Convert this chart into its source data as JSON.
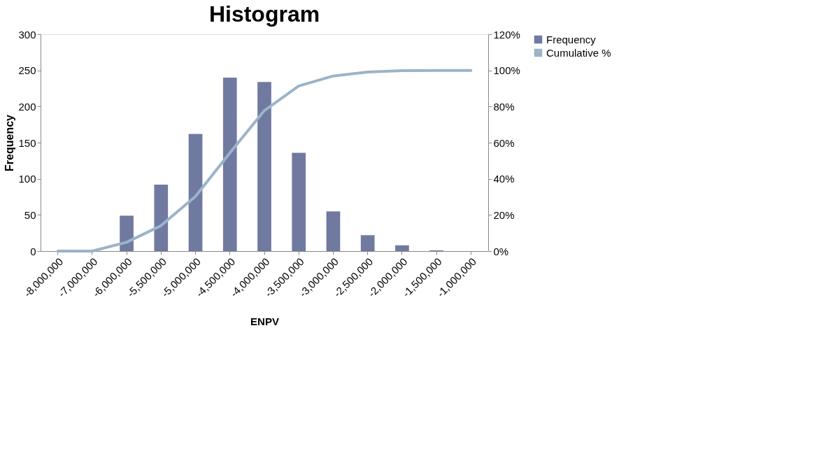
{
  "chart_data": {
    "type": "bar",
    "title": "Histogram",
    "xlabel": "ENPV",
    "ylabel": "Frequency",
    "categories": [
      "-8,000,000",
      "-7,000,000",
      "-6,000,000",
      "-5,500,000",
      "-5,000,000",
      "-4,500,000",
      "-4,000,000",
      "-3,500,000",
      "-3,000,000",
      "-2,500,000",
      "-2,000,000",
      "-1,500,000",
      "-1,000,000"
    ],
    "ylim": [
      0,
      300
    ],
    "yticks": [
      0,
      50,
      100,
      150,
      200,
      250,
      300
    ],
    "y2lim": [
      0,
      120
    ],
    "y2ticks": [
      {
        "value": 0,
        "label": "0%"
      },
      {
        "value": 20,
        "label": "20%"
      },
      {
        "value": 40,
        "label": "40%"
      },
      {
        "value": 60,
        "label": "60%"
      },
      {
        "value": 80,
        "label": "80%"
      },
      {
        "value": 100,
        "label": "100%"
      },
      {
        "value": 120,
        "label": "120%"
      }
    ],
    "series": [
      {
        "name": "Frequency",
        "color": "#7079a0",
        "values": [
          0,
          0,
          49,
          92,
          162,
          240,
          234,
          136,
          55,
          22,
          8,
          1,
          0
        ]
      },
      {
        "name": "Cumulative %",
        "type": "line",
        "axis": "y2",
        "color": "#9ab4c9",
        "values": [
          0,
          0,
          4.9,
          14.1,
          30.3,
          54.4,
          77.8,
          91.4,
          96.9,
          99.1,
          99.9,
          100,
          100
        ]
      }
    ],
    "legend": "right",
    "grid": false
  }
}
